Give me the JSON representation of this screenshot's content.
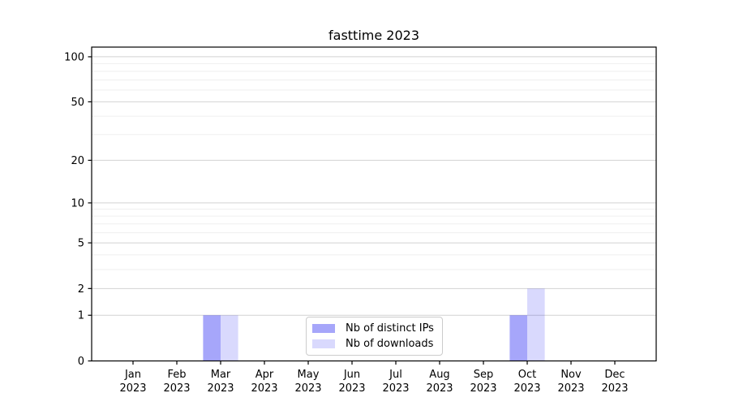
{
  "chart_data": {
    "type": "bar",
    "title": "fasttime 2023",
    "categories": [
      "Jan",
      "Feb",
      "Mar",
      "Apr",
      "May",
      "Jun",
      "Jul",
      "Aug",
      "Sep",
      "Oct",
      "Nov",
      "Dec"
    ],
    "category_year": "2023",
    "series": [
      {
        "name": "Nb of distinct IPs",
        "color": "rgba(0,0,240,0.35)",
        "values": [
          0,
          0,
          1,
          0,
          0,
          0,
          0,
          0,
          0,
          1,
          0,
          0
        ]
      },
      {
        "name": "Nb of downloads",
        "color": "rgba(0,0,240,0.15)",
        "values": [
          0,
          0,
          1,
          0,
          0,
          0,
          0,
          0,
          0,
          2,
          0,
          0
        ]
      }
    ],
    "yscale": "log1p",
    "ylim": [
      0,
      116
    ],
    "y_major_ticks": [
      0,
      1,
      2,
      5,
      10,
      20,
      50,
      100
    ],
    "y_minor_ticks": [
      3,
      4,
      6,
      7,
      8,
      9,
      30,
      40,
      60,
      70,
      80,
      90
    ],
    "grid": true,
    "legend_position": "lower center inside"
  },
  "colors": {
    "background": "#ffffff",
    "grid_major": "#d2d2d2",
    "grid_minor": "#efefef",
    "axis": "#000000",
    "tick_label": "#000000",
    "legend_border": "#cccccc",
    "legend_background": "#ffffff"
  }
}
